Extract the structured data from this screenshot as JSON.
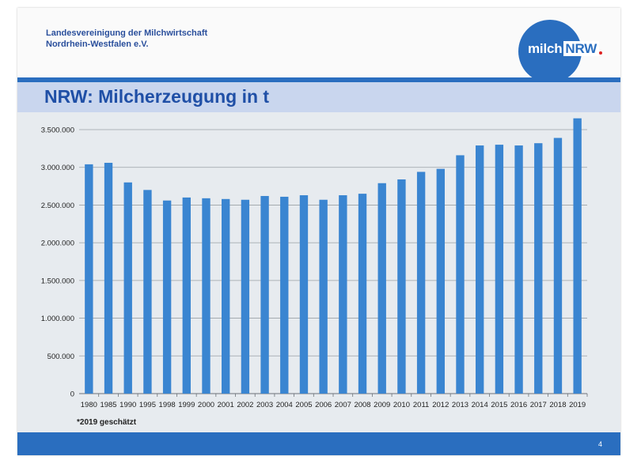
{
  "header": {
    "org_line1": "Landesvereinigung der Milchwirtschaft",
    "org_line2": "Nordrhein-Westfalen e.V.",
    "logo_milch": "milch",
    "logo_nrw": "NRW"
  },
  "title": "NRW: Milcherzeugung in t",
  "footnote": "*2019 geschätzt",
  "page_number": "4",
  "colors": {
    "accent": "#2a6ebf",
    "title": "#1f4fa6",
    "title_band": "#c9d6ee",
    "bar": "#3a85d1",
    "plot_bg": "#e7ebef"
  },
  "chart_data": {
    "type": "bar",
    "categories": [
      "1980",
      "1985",
      "1990",
      "1995",
      "1998",
      "1999",
      "2000",
      "2001",
      "2002",
      "2003",
      "2004",
      "2005",
      "2006",
      "2007",
      "2008",
      "2009",
      "2010",
      "2011",
      "2012",
      "2013",
      "2014",
      "2015",
      "2016",
      "2017",
      "2018",
      "2019"
    ],
    "values": [
      3040000,
      3060000,
      2800000,
      2700000,
      2560000,
      2600000,
      2590000,
      2580000,
      2570000,
      2620000,
      2610000,
      2630000,
      2570000,
      2630000,
      2650000,
      2790000,
      2840000,
      2940000,
      2980000,
      3160000,
      3290000,
      3300000,
      3290000,
      3320000,
      3390000,
      3650000
    ],
    "yticks": [
      "0",
      "500.000",
      "1.000.000",
      "1.500.000",
      "2.000.000",
      "2.500.000",
      "3.000.000",
      "3.500.000"
    ],
    "ylim": [
      0,
      3500000
    ],
    "grid": true,
    "legend": "none"
  }
}
